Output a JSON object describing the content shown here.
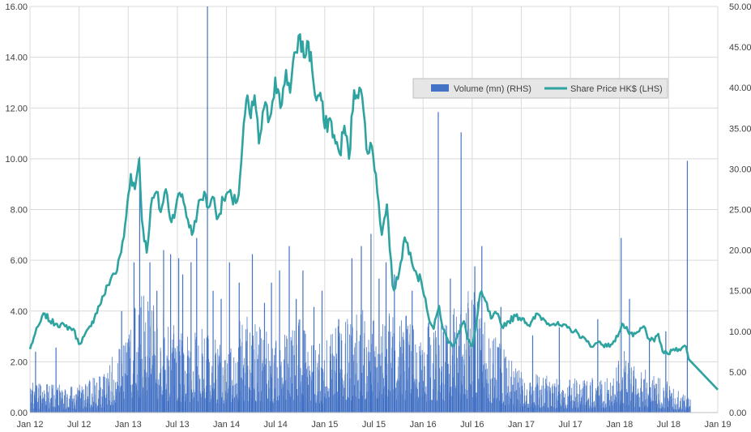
{
  "chart_data": {
    "type": "bar+line",
    "legend": {
      "placement": "upper-center-right",
      "entries": [
        {
          "label": "Volume (mn) (RHS)",
          "kind": "bar",
          "color": "#4472C4"
        },
        {
          "label": "Share Price HK$ (LHS)",
          "kind": "line",
          "color": "#2EA3A0"
        }
      ]
    },
    "x_axis": {
      "tick_labels": [
        "Jan 12",
        "Jul 12",
        "Jan 13",
        "Jul 13",
        "Jan 14",
        "Jul 14",
        "Jan 15",
        "Jul 15",
        "Jan 16",
        "Jul 16",
        "Jan 17",
        "Jul 17",
        "Jan 18",
        "Jul 18",
        "Jan 19"
      ],
      "range": [
        "2012-01-01",
        "2019-01-01"
      ]
    },
    "y_left": {
      "label": "Share Price HK$",
      "range": [
        0,
        16
      ],
      "tick_labels": [
        "0.00",
        "2.00",
        "4.00",
        "6.00",
        "8.00",
        "10.00",
        "12.00",
        "14.00",
        "16.00"
      ],
      "grid": true
    },
    "y_right": {
      "label": "Volume (mn)",
      "range": [
        0,
        50
      ],
      "tick_labels": [
        "0.00",
        "5.00",
        "10.00",
        "15.00",
        "20.00",
        "25.00",
        "30.00",
        "35.00",
        "40.00",
        "45.00",
        "50.00"
      ]
    },
    "series": [
      {
        "name": "Share Price HK$ (LHS)",
        "type": "line",
        "axis": "left",
        "color": "#2EA3A0",
        "points": [
          [
            "2012-01-01",
            2.5
          ],
          [
            "2012-01-20",
            3.1
          ],
          [
            "2012-02-10",
            3.6
          ],
          [
            "2012-02-25",
            3.9
          ],
          [
            "2012-03-15",
            3.6
          ],
          [
            "2012-04-10",
            3.5
          ],
          [
            "2012-05-10",
            3.4
          ],
          [
            "2012-06-10",
            3.3
          ],
          [
            "2012-07-01",
            2.7
          ],
          [
            "2012-07-20",
            3.0
          ],
          [
            "2012-08-15",
            3.4
          ],
          [
            "2012-09-01",
            3.9
          ],
          [
            "2012-10-01",
            4.6
          ],
          [
            "2012-11-01",
            5.4
          ],
          [
            "2012-11-20",
            5.6
          ],
          [
            "2012-12-15",
            6.9
          ],
          [
            "2013-01-01",
            8.6
          ],
          [
            "2013-01-10",
            9.4
          ],
          [
            "2013-01-25",
            8.8
          ],
          [
            "2013-02-10",
            10.0
          ],
          [
            "2013-02-20",
            7.6
          ],
          [
            "2013-03-10",
            6.3
          ],
          [
            "2013-03-25",
            8.1
          ],
          [
            "2013-04-15",
            8.7
          ],
          [
            "2013-05-01",
            7.9
          ],
          [
            "2013-05-20",
            8.8
          ],
          [
            "2013-06-10",
            7.5
          ],
          [
            "2013-07-01",
            8.4
          ],
          [
            "2013-07-20",
            8.6
          ],
          [
            "2013-08-10",
            7.6
          ],
          [
            "2013-08-25",
            7.0
          ],
          [
            "2013-09-15",
            8.0
          ],
          [
            "2013-10-10",
            8.7
          ],
          [
            "2013-10-20",
            8.1
          ],
          [
            "2013-11-10",
            8.5
          ],
          [
            "2013-12-01",
            7.7
          ],
          [
            "2013-12-20",
            8.4
          ],
          [
            "2014-01-10",
            8.7
          ],
          [
            "2014-01-25",
            8.2
          ],
          [
            "2014-02-15",
            8.6
          ],
          [
            "2014-03-01",
            10.6
          ],
          [
            "2014-03-15",
            12.3
          ],
          [
            "2014-04-01",
            11.6
          ],
          [
            "2014-04-15",
            12.5
          ],
          [
            "2014-05-01",
            10.6
          ],
          [
            "2014-05-20",
            12.0
          ],
          [
            "2014-06-10",
            11.6
          ],
          [
            "2014-07-01",
            13.2
          ],
          [
            "2014-07-20",
            12.0
          ],
          [
            "2014-08-10",
            13.5
          ],
          [
            "2014-08-25",
            12.6
          ],
          [
            "2014-09-15",
            14.2
          ],
          [
            "2014-10-01",
            14.9
          ],
          [
            "2014-10-15",
            14.0
          ],
          [
            "2014-11-01",
            14.6
          ],
          [
            "2014-11-15",
            13.5
          ],
          [
            "2014-12-01",
            12.3
          ],
          [
            "2014-12-15",
            12.6
          ],
          [
            "2015-01-01",
            11.2
          ],
          [
            "2015-01-20",
            11.6
          ],
          [
            "2015-02-10",
            10.6
          ],
          [
            "2015-02-25",
            10.2
          ],
          [
            "2015-03-15",
            11.3
          ],
          [
            "2015-04-01",
            10.0
          ],
          [
            "2015-04-20",
            12.7
          ],
          [
            "2015-05-10",
            12.8
          ],
          [
            "2015-05-25",
            11.9
          ],
          [
            "2015-06-10",
            10.2
          ],
          [
            "2015-06-25",
            10.5
          ],
          [
            "2015-07-10",
            9.4
          ],
          [
            "2015-07-20",
            8.3
          ],
          [
            "2015-08-01",
            7.0
          ],
          [
            "2015-08-20",
            8.2
          ],
          [
            "2015-09-10",
            5.0
          ],
          [
            "2015-09-20",
            4.9
          ],
          [
            "2015-10-10",
            5.9
          ],
          [
            "2015-10-25",
            6.9
          ],
          [
            "2015-11-15",
            6.3
          ],
          [
            "2015-12-10",
            5.4
          ],
          [
            "2015-12-25",
            5.2
          ],
          [
            "2016-01-10",
            4.5
          ],
          [
            "2016-01-25",
            3.6
          ],
          [
            "2016-02-10",
            3.3
          ],
          [
            "2016-03-01",
            4.2
          ],
          [
            "2016-03-15",
            3.3
          ],
          [
            "2016-04-01",
            2.9
          ],
          [
            "2016-04-20",
            2.6
          ],
          [
            "2016-05-10",
            3.1
          ],
          [
            "2016-06-01",
            3.6
          ],
          [
            "2016-06-15",
            2.9
          ],
          [
            "2016-07-01",
            2.6
          ],
          [
            "2016-07-15",
            3.3
          ],
          [
            "2016-08-01",
            4.7
          ],
          [
            "2016-08-20",
            4.4
          ],
          [
            "2016-09-10",
            3.7
          ],
          [
            "2016-10-01",
            3.9
          ],
          [
            "2016-10-20",
            3.4
          ],
          [
            "2016-11-15",
            3.6
          ],
          [
            "2016-12-10",
            3.8
          ],
          [
            "2017-01-10",
            3.7
          ],
          [
            "2017-02-01",
            3.4
          ],
          [
            "2017-03-01",
            3.9
          ],
          [
            "2017-04-01",
            3.6
          ],
          [
            "2017-05-01",
            3.5
          ],
          [
            "2017-06-01",
            3.4
          ],
          [
            "2017-07-01",
            3.3
          ],
          [
            "2017-08-01",
            3.1
          ],
          [
            "2017-09-01",
            2.8
          ],
          [
            "2017-09-25",
            2.6
          ],
          [
            "2017-10-15",
            2.8
          ],
          [
            "2017-11-15",
            2.6
          ],
          [
            "2017-12-15",
            2.8
          ],
          [
            "2018-01-10",
            3.5
          ],
          [
            "2018-02-01",
            3.2
          ],
          [
            "2018-02-20",
            3.0
          ],
          [
            "2018-03-15",
            3.2
          ],
          [
            "2018-04-01",
            3.4
          ],
          [
            "2018-04-20",
            2.9
          ],
          [
            "2018-05-10",
            2.8
          ],
          [
            "2018-05-25",
            3.1
          ],
          [
            "2018-06-10",
            2.4
          ],
          [
            "2018-07-01",
            2.3
          ],
          [
            "2018-07-20",
            2.5
          ],
          [
            "2018-08-10",
            2.5
          ],
          [
            "2018-08-25",
            2.6
          ],
          [
            "2018-09-05",
            2.6
          ],
          [
            "2018-09-15",
            2.1
          ],
          [
            "2019-01-01",
            0.9
          ]
        ]
      },
      {
        "name": "Volume (mn) (RHS)",
        "type": "bar",
        "axis": "right",
        "color": "#4472C4",
        "baseline_profile": [
          [
            "2012-01-01",
            3.0
          ],
          [
            "2012-06-01",
            2.5
          ],
          [
            "2012-10-01",
            4.0
          ],
          [
            "2013-01-01",
            9.0
          ],
          [
            "2013-03-01",
            12.0
          ],
          [
            "2013-06-01",
            9.0
          ],
          [
            "2013-10-01",
            8.0
          ],
          [
            "2014-01-01",
            6.0
          ],
          [
            "2014-03-01",
            9.5
          ],
          [
            "2014-07-01",
            7.0
          ],
          [
            "2014-10-01",
            9.0
          ],
          [
            "2015-01-01",
            7.0
          ],
          [
            "2015-04-01",
            9.5
          ],
          [
            "2015-07-01",
            11.0
          ],
          [
            "2015-09-01",
            10.0
          ],
          [
            "2016-01-01",
            8.5
          ],
          [
            "2016-05-01",
            10.0
          ],
          [
            "2016-07-01",
            12.0
          ],
          [
            "2016-09-01",
            8.0
          ],
          [
            "2017-01-01",
            4.0
          ],
          [
            "2017-06-01",
            3.2
          ],
          [
            "2017-12-01",
            3.5
          ],
          [
            "2018-01-15",
            7.0
          ],
          [
            "2018-03-01",
            4.5
          ],
          [
            "2018-07-01",
            3.0
          ],
          [
            "2018-09-10",
            1.5
          ]
        ],
        "spikes": [
          [
            "2012-01-20",
            7.5
          ],
          [
            "2012-04-05",
            8.0
          ],
          [
            "2012-12-05",
            12.5
          ],
          [
            "2013-01-20",
            18.5
          ],
          [
            "2013-02-10",
            31.5
          ],
          [
            "2013-03-20",
            18.5
          ],
          [
            "2013-04-15",
            15.0
          ],
          [
            "2013-05-10",
            20.0
          ],
          [
            "2013-06-05",
            19.5
          ],
          [
            "2013-07-05",
            19.0
          ],
          [
            "2013-07-20",
            17.0
          ],
          [
            "2013-08-20",
            18.5
          ],
          [
            "2013-09-10",
            21.5
          ],
          [
            "2013-10-20",
            50.0
          ],
          [
            "2013-11-10",
            15.0
          ],
          [
            "2013-12-10",
            14.0
          ],
          [
            "2014-01-10",
            18.5
          ],
          [
            "2014-02-15",
            16.0
          ],
          [
            "2014-04-05",
            19.5
          ],
          [
            "2014-05-20",
            13.5
          ],
          [
            "2014-06-15",
            16.0
          ],
          [
            "2014-07-15",
            17.5
          ],
          [
            "2014-08-20",
            20.5
          ],
          [
            "2014-09-15",
            14.0
          ],
          [
            "2014-10-10",
            17.5
          ],
          [
            "2014-11-20",
            13.0
          ],
          [
            "2014-12-20",
            15.0
          ],
          [
            "2015-02-20",
            11.5
          ],
          [
            "2015-04-10",
            19.0
          ],
          [
            "2015-05-15",
            20.5
          ],
          [
            "2015-06-20",
            22.0
          ],
          [
            "2015-07-20",
            16.5
          ],
          [
            "2015-08-15",
            18.5
          ],
          [
            "2015-09-15",
            17.0
          ],
          [
            "2015-11-20",
            15.0
          ],
          [
            "2016-02-25",
            37.0
          ],
          [
            "2016-04-10",
            16.5
          ],
          [
            "2016-05-20",
            34.5
          ],
          [
            "2016-07-10",
            18.0
          ],
          [
            "2016-08-05",
            20.5
          ],
          [
            "2016-10-15",
            13.0
          ],
          [
            "2017-02-10",
            9.5
          ],
          [
            "2017-05-20",
            10.5
          ],
          [
            "2017-10-10",
            11.5
          ],
          [
            "2018-01-05",
            21.5
          ],
          [
            "2018-02-05",
            14.0
          ],
          [
            "2018-04-20",
            9.0
          ],
          [
            "2018-06-20",
            10.0
          ],
          [
            "2018-09-08",
            31.0
          ]
        ]
      }
    ],
    "grid": true
  }
}
